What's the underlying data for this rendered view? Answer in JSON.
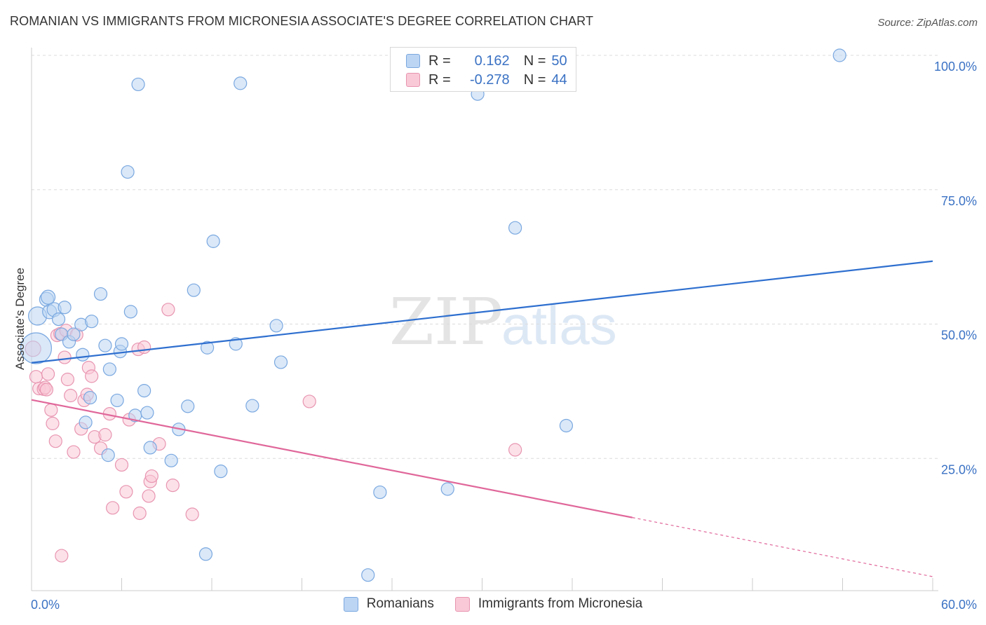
{
  "title": "ROMANIAN VS IMMIGRANTS FROM MICRONESIA ASSOCIATE'S DEGREE CORRELATION CHART",
  "source": "Source: ZipAtlas.com",
  "watermark": {
    "zip": "ZIP",
    "atlas": "atlas"
  },
  "legend": {
    "rows": [
      {
        "r_label": "R =",
        "r_value": "0.162",
        "n_label": "N =",
        "n_value": "50",
        "color": "#a9c8f0",
        "border": "#7aa8e0"
      },
      {
        "r_label": "R =",
        "r_value": "-0.278",
        "n_label": "N =",
        "n_value": "44",
        "color": "#f8c2d2",
        "border": "#e895b0"
      }
    ]
  },
  "bottom_legend": [
    "Romanians",
    "Immigrants from Micronesia"
  ],
  "colors": {
    "blue": "#3b72c4",
    "blue_line": "#2e6fcf",
    "pink_line": "#e0679a",
    "blue_fill": "#bcd5f3",
    "pink_fill": "#f9c9d7",
    "axis_text": "#3b72c4",
    "grid": "#dddddd"
  },
  "chart_data": {
    "type": "scatter",
    "title": "ROMANIAN VS IMMIGRANTS FROM MICRONESIA ASSOCIATE'S DEGREE CORRELATION CHART",
    "xlabel": "",
    "ylabel": "Associate's Degree",
    "xlim": [
      0,
      60
    ],
    "ylim": [
      0,
      101
    ],
    "x_ticks": [
      "0.0%",
      "60.0%"
    ],
    "y_ticks": [
      {
        "value": 25,
        "label": "25.0%"
      },
      {
        "value": 50,
        "label": "50.0%"
      },
      {
        "value": 75,
        "label": "75.0%"
      },
      {
        "value": 100,
        "label": "100.0%"
      }
    ],
    "grid": true,
    "legend_position": "top-center",
    "series": [
      {
        "name": "Romanians",
        "color": "#3b72c4",
        "trend": {
          "x": [
            0,
            60
          ],
          "y": [
            42.8,
            61.7
          ]
        },
        "points": [
          [
            0.3,
            45.5,
            22
          ],
          [
            0.4,
            51.5,
            13
          ],
          [
            1.0,
            54.6,
            10
          ],
          [
            1.1,
            55.0,
            10
          ],
          [
            1.2,
            52.3,
            10
          ],
          [
            1.5,
            52.7,
            10
          ],
          [
            1.8,
            50.9,
            9
          ],
          [
            2.2,
            53.1,
            9
          ],
          [
            2.0,
            48.1,
            9
          ],
          [
            2.5,
            46.7,
            9
          ],
          [
            2.8,
            48.1,
            9
          ],
          [
            3.3,
            49.9,
            9
          ],
          [
            3.4,
            44.3,
            9
          ],
          [
            3.6,
            31.7,
            9
          ],
          [
            3.9,
            36.3,
            9
          ],
          [
            4.0,
            50.5,
            9
          ],
          [
            4.6,
            55.6,
            9
          ],
          [
            4.9,
            46.0,
            9
          ],
          [
            5.1,
            25.6,
            9
          ],
          [
            5.2,
            41.6,
            9
          ],
          [
            5.7,
            35.8,
            9
          ],
          [
            5.9,
            44.9,
            9
          ],
          [
            6.0,
            46.3,
            9
          ],
          [
            6.4,
            78.3,
            9
          ],
          [
            6.6,
            52.3,
            9
          ],
          [
            6.9,
            33.0,
            9
          ],
          [
            7.1,
            94.6,
            9
          ],
          [
            7.5,
            37.6,
            9
          ],
          [
            7.7,
            33.5,
            9
          ],
          [
            7.9,
            27.0,
            9
          ],
          [
            9.3,
            24.6,
            9
          ],
          [
            9.8,
            30.4,
            9
          ],
          [
            10.4,
            34.7,
            9
          ],
          [
            10.8,
            56.3,
            9
          ],
          [
            11.7,
            45.6,
            9
          ],
          [
            11.6,
            7.2,
            9
          ],
          [
            12.1,
            65.4,
            9
          ],
          [
            12.6,
            22.6,
            9
          ],
          [
            13.6,
            46.3,
            9
          ],
          [
            13.9,
            94.8,
            9
          ],
          [
            14.7,
            34.8,
            9
          ],
          [
            16.3,
            49.7,
            9
          ],
          [
            16.6,
            42.9,
            9
          ],
          [
            22.4,
            3.3,
            9
          ],
          [
            23.2,
            18.7,
            9
          ],
          [
            29.7,
            92.8,
            9
          ],
          [
            27.7,
            19.3,
            9
          ],
          [
            32.2,
            67.9,
            9
          ],
          [
            35.6,
            31.1,
            9
          ],
          [
            53.8,
            100.0,
            9
          ]
        ]
      },
      {
        "name": "Immigrants from Micronesia",
        "color": "#e0679a",
        "trend": {
          "x": [
            0,
            40
          ],
          "y": [
            35.9,
            14.0
          ],
          "dashed_to": {
            "x": 60,
            "y": 3.0
          }
        },
        "points": [
          [
            0.1,
            45.4,
            11
          ],
          [
            0.3,
            40.2,
            9
          ],
          [
            0.5,
            38.0,
            9
          ],
          [
            0.8,
            37.9,
            9
          ],
          [
            0.9,
            38.2,
            9
          ],
          [
            1.1,
            40.7,
            9
          ],
          [
            1.3,
            34.0,
            9
          ],
          [
            1.4,
            31.5,
            9
          ],
          [
            1.6,
            28.2,
            9
          ],
          [
            1.7,
            47.9,
            9
          ],
          [
            1.9,
            48.2,
            9
          ],
          [
            2.0,
            6.9,
            9
          ],
          [
            2.2,
            43.8,
            9
          ],
          [
            2.3,
            48.8,
            9
          ],
          [
            2.4,
            39.7,
            9
          ],
          [
            2.6,
            36.7,
            9
          ],
          [
            2.8,
            26.2,
            9
          ],
          [
            3.0,
            48.0,
            9
          ],
          [
            3.3,
            30.5,
            9
          ],
          [
            3.5,
            35.8,
            9
          ],
          [
            3.7,
            36.9,
            9
          ],
          [
            3.8,
            41.9,
            9
          ],
          [
            4.0,
            40.3,
            9
          ],
          [
            4.2,
            29.0,
            9
          ],
          [
            4.6,
            26.9,
            9
          ],
          [
            4.9,
            29.4,
            9
          ],
          [
            5.2,
            33.3,
            9
          ],
          [
            5.4,
            15.8,
            9
          ],
          [
            6.0,
            23.8,
            9
          ],
          [
            6.3,
            18.8,
            9
          ],
          [
            6.5,
            32.2,
            9
          ],
          [
            7.1,
            45.3,
            9
          ],
          [
            7.2,
            14.8,
            9
          ],
          [
            7.5,
            45.7,
            9
          ],
          [
            7.8,
            18.0,
            9
          ],
          [
            7.9,
            20.7,
            9
          ],
          [
            8.0,
            21.7,
            9
          ],
          [
            8.5,
            27.7,
            9
          ],
          [
            9.1,
            52.7,
            9
          ],
          [
            9.4,
            20.0,
            9
          ],
          [
            10.7,
            14.6,
            9
          ],
          [
            18.5,
            35.6,
            9
          ],
          [
            32.2,
            26.6,
            9
          ],
          [
            1.0,
            37.8,
            9
          ]
        ]
      }
    ]
  }
}
